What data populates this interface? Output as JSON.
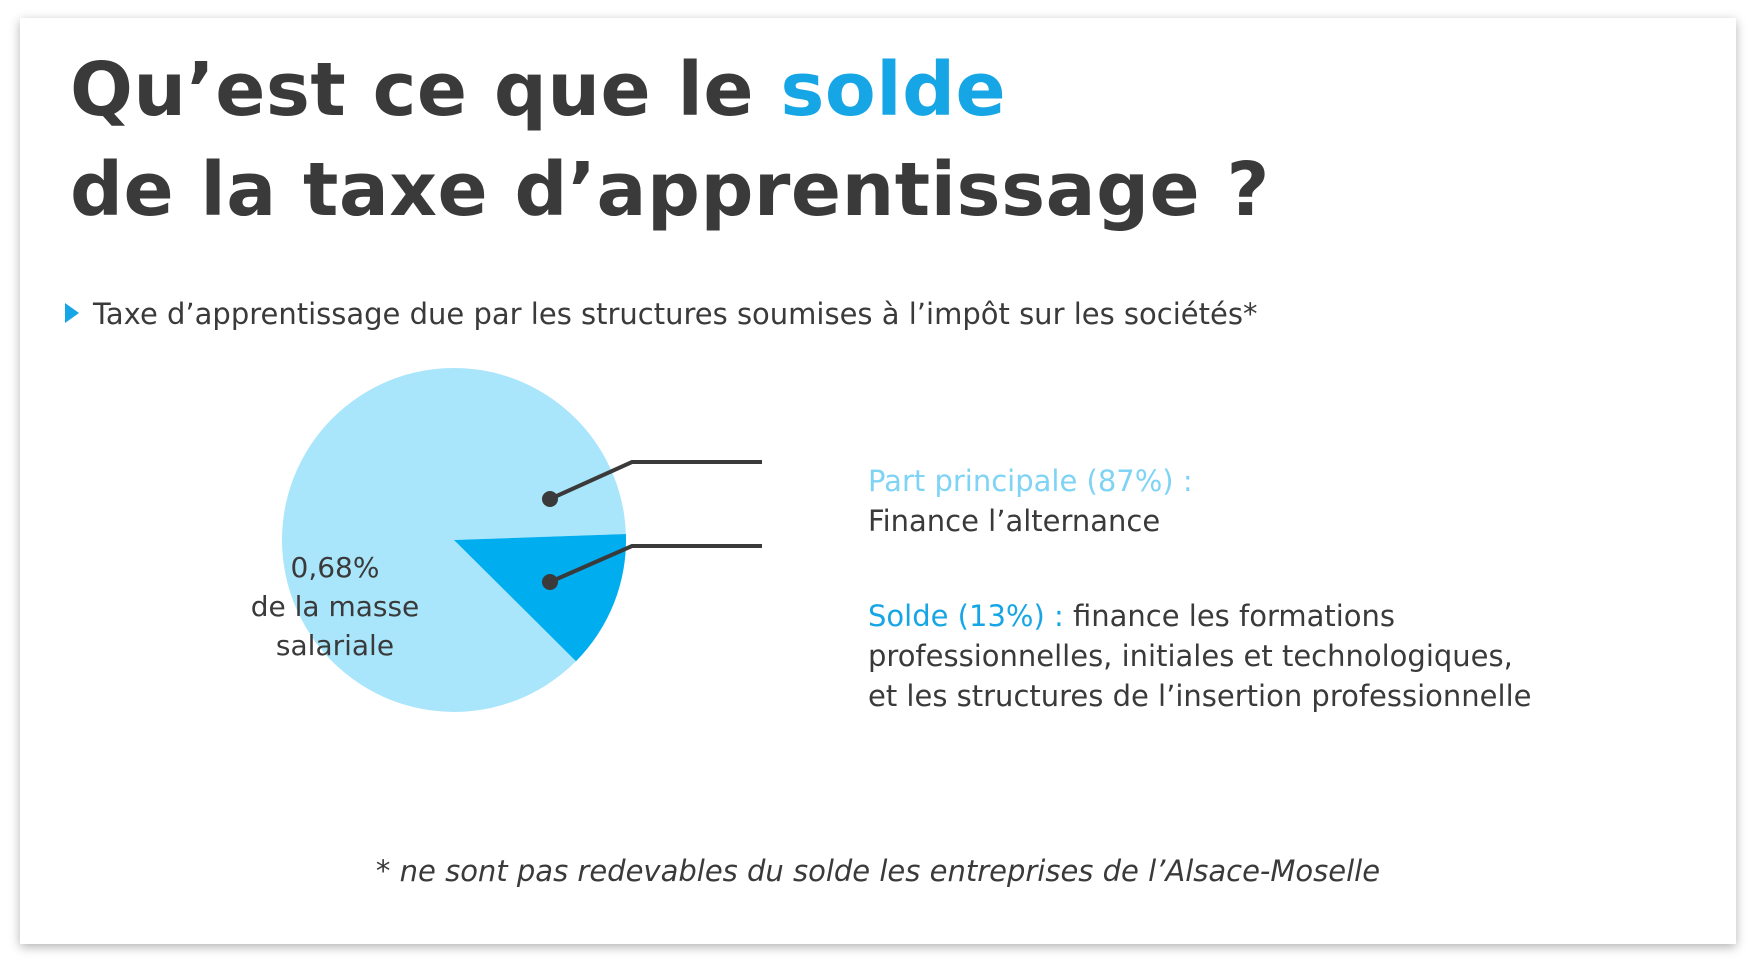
{
  "title": {
    "line1_prefix": "Qu’est ce que le ",
    "line1_accent": "solde",
    "line2": "de la taxe d’apprentissage ?"
  },
  "subtitle": "Taxe d’apprentissage due par les structures soumises à l’impôt sur les sociétés*",
  "pie_label": {
    "line1": "0,68%",
    "line2": "de la masse",
    "line3": "salariale"
  },
  "legend": {
    "main": {
      "head": "Part principale (87%) :",
      "text": "Finance l’alternance"
    },
    "solde": {
      "head": "Solde (13%) :",
      "text1": " finance les formations",
      "text2": "professionnelles, initiales et technologiques,",
      "text3": "et les structures de l’insertion professionnelle"
    }
  },
  "footnote": "* ne sont pas redevables du solde les entreprises de l’Alsace-Moselle",
  "colors": {
    "text": "#3a3a3a",
    "accent": "#17a6e5",
    "slice_main": "#aae6fb",
    "slice_solde": "#00adee",
    "leader": "#3a3a3a"
  },
  "chart_data": {
    "type": "pie",
    "categories": [
      "Part principale",
      "Solde"
    ],
    "values": [
      87,
      13
    ],
    "unit": "%"
  }
}
